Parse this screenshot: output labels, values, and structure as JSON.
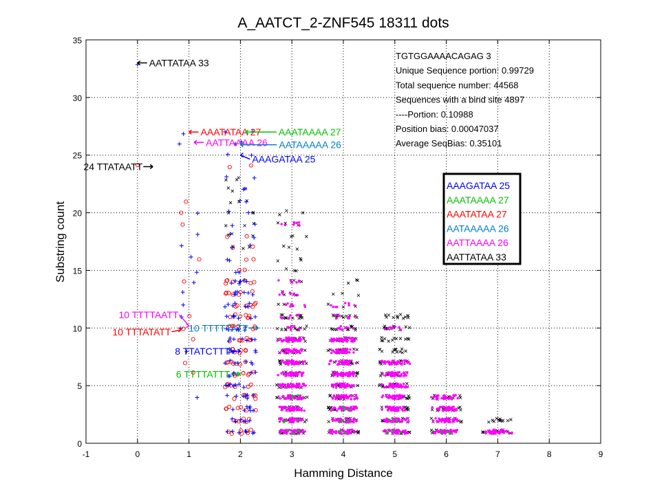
{
  "chart_data": {
    "type": "scatter",
    "title": "A_AATCT_2-ZNF545  18311 dots",
    "xlabel": "Hamming Distance",
    "ylabel": "Substring count",
    "xlim": [
      -1,
      9
    ],
    "ylim": [
      0,
      35
    ],
    "xticks": [
      "-1",
      "0",
      "1",
      "2",
      "3",
      "4",
      "5",
      "6",
      "7",
      "8",
      "9"
    ],
    "yticks": [
      "0",
      "5",
      "10",
      "15",
      "20",
      "25",
      "30",
      "35"
    ],
    "grid": true,
    "info_text": [
      "TGTGGAAAACAGAG 3",
      "Unique Sequence portion:  0.99729",
      "Total sequence number: 44568",
      "Sequences with a bind site 4897",
      "----Portion: 0.10988",
      " Position bias: 0.00047037",
      "Average SeqBias: 0.35101"
    ],
    "legend_position": "right",
    "legend": [
      {
        "label": "AAAGATAA 25",
        "color": "#0000ff"
      },
      {
        "label": "AAATAAAA 27",
        "color": "#00c000"
      },
      {
        "label": "AAATATAA 27",
        "color": "#ff0000"
      },
      {
        "label": "AATAAAAA 26",
        "color": "#0080c0"
      },
      {
        "label": "AATTAAAA 26",
        "color": "#ff00ff"
      },
      {
        "label": "AATTATAA 33",
        "color": "#000000"
      }
    ],
    "series": [
      {
        "marker": "x",
        "color": "#000000",
        "clusters": [
          {
            "hamming": 3,
            "counts": [
              1,
              2,
              3,
              4,
              5,
              6,
              7,
              8,
              9,
              10,
              11,
              12,
              13,
              14,
              15,
              16,
              17,
              18,
              19,
              20
            ]
          },
          {
            "hamming": 4,
            "counts": [
              1,
              2,
              3,
              4,
              5,
              6,
              7,
              8,
              9,
              10,
              11,
              12,
              13,
              14
            ]
          },
          {
            "hamming": 5,
            "counts": [
              1,
              2,
              3,
              4,
              5,
              6,
              7,
              8,
              9,
              10,
              11
            ]
          },
          {
            "hamming": 6,
            "counts": [
              1,
              2,
              3,
              4
            ]
          },
          {
            "hamming": 7,
            "counts": [
              1,
              2
            ]
          },
          {
            "hamming": 2,
            "counts": [
              17,
              18,
              19,
              20,
              21,
              22,
              23
            ]
          }
        ]
      },
      {
        "marker": "dot",
        "color": "#ff00ff",
        "clusters": [
          {
            "hamming": 3,
            "counts": [
              1,
              2,
              3,
              4,
              5,
              6,
              7,
              8,
              9,
              10,
              11,
              12,
              13,
              14,
              19
            ]
          },
          {
            "hamming": 4,
            "counts": [
              1,
              2,
              3,
              4,
              5,
              6,
              7,
              8,
              9,
              10,
              11,
              12
            ]
          },
          {
            "hamming": 5,
            "counts": [
              1,
              2,
              3,
              4,
              5,
              6,
              7,
              10
            ]
          },
          {
            "hamming": 6,
            "counts": [
              1,
              2,
              3,
              4
            ]
          },
          {
            "hamming": 7,
            "counts": [
              1
            ]
          }
        ]
      },
      {
        "marker": "dot",
        "color": "#00c000",
        "clusters": [
          {
            "hamming": 3,
            "counts": [
              1,
              2,
              4
            ]
          },
          {
            "hamming": 4,
            "counts": [
              1,
              2,
              3
            ]
          },
          {
            "hamming": 5,
            "counts": [
              1,
              2
            ]
          },
          {
            "hamming": 6,
            "counts": [
              1
            ]
          }
        ]
      },
      {
        "marker": "o",
        "color": "#ff0000",
        "clusters": [
          {
            "hamming": 0,
            "counts": [
              24
            ]
          },
          {
            "hamming": 1,
            "counts": [
              6,
              7,
              9,
              10,
              11,
              14,
              16,
              19,
              20,
              21
            ]
          },
          {
            "hamming": 2,
            "counts": [
              1,
              2,
              3,
              4,
              5,
              6,
              7,
              8,
              9,
              10,
              11,
              12,
              13,
              14,
              15,
              16,
              17,
              18,
              24
            ]
          }
        ]
      },
      {
        "marker": "+",
        "color": "#0000ff",
        "clusters": [
          {
            "hamming": 0,
            "counts": [
              33
            ]
          },
          {
            "hamming": 1,
            "counts": [
              4,
              8,
              10,
              11,
              12,
              13,
              14,
              15,
              16,
              17,
              18,
              20,
              26,
              27
            ]
          },
          {
            "hamming": 2,
            "counts": [
              1,
              2,
              3,
              4,
              5,
              6,
              7,
              8,
              9,
              10,
              11,
              12,
              13,
              14,
              15,
              16,
              17,
              18,
              19,
              20,
              21,
              22,
              23,
              25,
              26,
              27
            ]
          }
        ]
      }
    ],
    "annotations": [
      {
        "text": "AATTATAA 33",
        "color": "#000000",
        "x": 0,
        "y": 33,
        "side": "right"
      },
      {
        "text": "AAATATAA 27",
        "color": "#ff0000",
        "x": 1,
        "y": 27,
        "side": "right"
      },
      {
        "text": "AAATAAAA 27",
        "color": "#00c000",
        "x": 2.1,
        "y": 27,
        "side": "right"
      },
      {
        "text": "AATTAAAA 26",
        "color": "#ff00ff",
        "x": 1.1,
        "y": 26.1,
        "side": "right"
      },
      {
        "text": "AATAAAAA 26",
        "color": "#0080c0",
        "x": 2,
        "y": 25.9,
        "side": "right"
      },
      {
        "text": "AAAGATAA 25",
        "color": "#0000ff",
        "x": 2,
        "y": 25,
        "side": "right"
      },
      {
        "text": "24 TTATAATT",
        "color": "#000000",
        "x": 0.3,
        "y": 24,
        "side": "left"
      },
      {
        "text": "10 TTTATATT",
        "color": "#ff0000",
        "x": 0.85,
        "y": 9.85,
        "side": "left"
      },
      {
        "text": "10 TTTTAATT",
        "color": "#ff00ff",
        "x": 1.0,
        "y": 10.2,
        "side": "left"
      },
      {
        "text": "10 TTTTTATT",
        "color": "#0080c0",
        "x": 2.35,
        "y": 10.0,
        "side": "left"
      },
      {
        "text": "8 TTATCTTT",
        "color": "#0000ff",
        "x": 2.0,
        "y": 8.0,
        "side": "left"
      },
      {
        "text": "6 TTTTATTT",
        "color": "#00c000",
        "x": 2.0,
        "y": 6.0,
        "side": "left"
      }
    ]
  }
}
